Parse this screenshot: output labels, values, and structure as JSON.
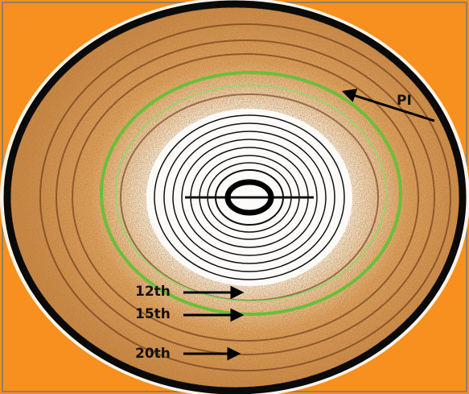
{
  "annotations": {
    "pi": "PI",
    "order_12": "12th",
    "order_15": "15th",
    "order_20": "20th"
  }
}
